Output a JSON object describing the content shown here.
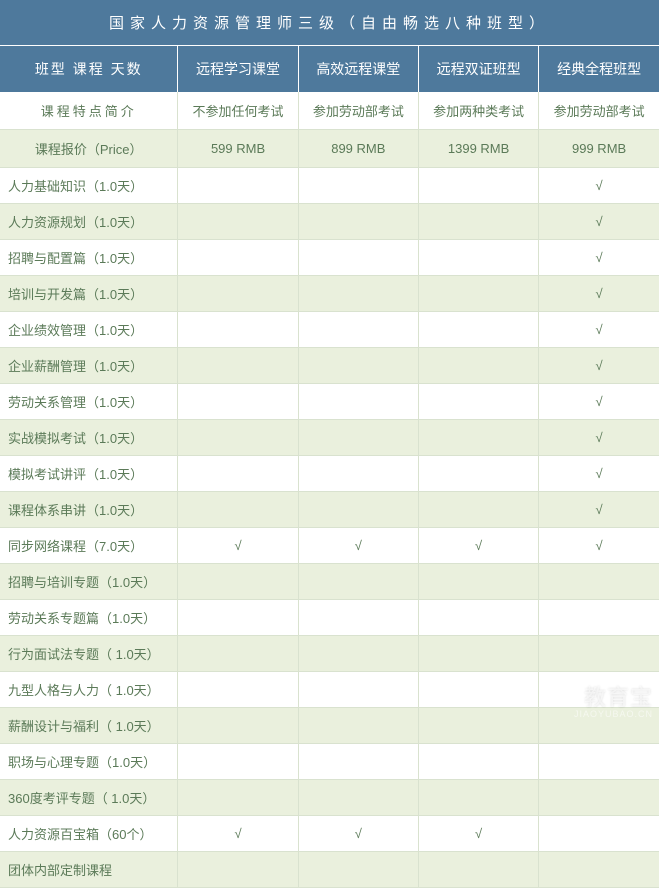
{
  "title": "国家人力资源管理师三级（自由畅选八种班型）",
  "header": {
    "label": "班型  课程  天数",
    "cols": [
      "远程学习课堂",
      "高效远程课堂",
      "远程双证班型",
      "经典全程班型"
    ]
  },
  "intro": {
    "label": "课程特点简介",
    "vals": [
      "不参加任何考试",
      "参加劳动部考试",
      "参加两种类考试",
      "参加劳动部考试"
    ]
  },
  "price": {
    "label": "课程报价（Price）",
    "vals": [
      "599 RMB",
      "899 RMB",
      "1399 RMB",
      "999 RMB"
    ]
  },
  "rows": [
    {
      "label": "人力基础知识（1.0天）",
      "c": [
        "",
        "",
        "",
        "√"
      ]
    },
    {
      "label": "人力资源规划（1.0天）",
      "c": [
        "",
        "",
        "",
        "√"
      ]
    },
    {
      "label": "招聘与配置篇（1.0天）",
      "c": [
        "",
        "",
        "",
        "√"
      ]
    },
    {
      "label": "培训与开发篇（1.0天）",
      "c": [
        "",
        "",
        "",
        "√"
      ]
    },
    {
      "label": "企业绩效管理（1.0天）",
      "c": [
        "",
        "",
        "",
        "√"
      ]
    },
    {
      "label": "企业薪酬管理（1.0天）",
      "c": [
        "",
        "",
        "",
        "√"
      ]
    },
    {
      "label": "劳动关系管理（1.0天）",
      "c": [
        "",
        "",
        "",
        "√"
      ]
    },
    {
      "label": "实战模拟考试（1.0天）",
      "c": [
        "",
        "",
        "",
        "√"
      ]
    },
    {
      "label": "模拟考试讲评（1.0天）",
      "c": [
        "",
        "",
        "",
        "√"
      ]
    },
    {
      "label": "课程体系串讲（1.0天）",
      "c": [
        "",
        "",
        "",
        "√"
      ]
    },
    {
      "label": "同步网络课程（7.0天）",
      "c": [
        "√",
        "√",
        "√",
        "√"
      ]
    },
    {
      "label": "招聘与培训专题（1.0天）",
      "c": [
        "",
        "",
        "",
        ""
      ]
    },
    {
      "label": "劳动关系专题篇（1.0天）",
      "c": [
        "",
        "",
        "",
        ""
      ]
    },
    {
      "label": "行为面试法专题（ 1.0天）",
      "c": [
        "",
        "",
        "",
        ""
      ]
    },
    {
      "label": "九型人格与人力（ 1.0天）",
      "c": [
        "",
        "",
        "",
        ""
      ]
    },
    {
      "label": "薪酬设计与福利（ 1.0天）",
      "c": [
        "",
        "",
        "",
        ""
      ]
    },
    {
      "label": "职场与心理专题（1.0天）",
      "c": [
        "",
        "",
        "",
        ""
      ]
    },
    {
      "label": "360度考评专题（ 1.0天）",
      "c": [
        "",
        "",
        "",
        ""
      ]
    },
    {
      "label": "人力资源百宝箱（60个）",
      "c": [
        "√",
        "√",
        "√",
        ""
      ]
    },
    {
      "label": "  团体内部定制课程",
      "c": [
        "",
        "",
        "",
        ""
      ]
    }
  ],
  "watermark": {
    "main": "教育宝",
    "sub": "JIAOYUBAO.CN"
  },
  "colors": {
    "header_bg": "#4e799c",
    "header_text": "#ffffff",
    "body_text": "#5b7a58",
    "row_alt_bg": "#eaf0dd",
    "row_bg": "#ffffff",
    "border": "#d9e2cf"
  }
}
